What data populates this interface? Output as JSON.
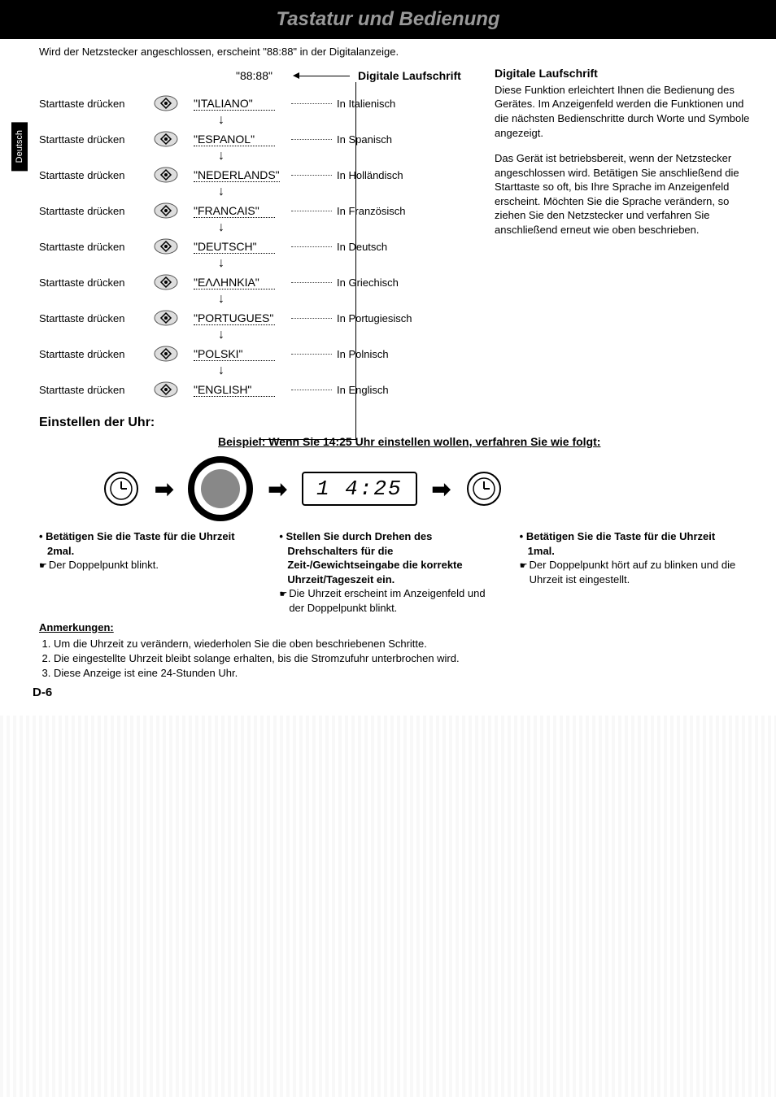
{
  "title": "Tastatur und Bedienung",
  "side_tab": "Deutsch",
  "intro": "Wird der Netzstecker angeschlossen, erscheint \"88:88\" in der Digitalanzeige.",
  "top_display": "\"88:88\"",
  "top_header": "Digitale Laufschrift",
  "press_label": "Starttaste drücken",
  "languages": [
    {
      "display": "\"ITALIANO\"",
      "desc": "In Italienisch"
    },
    {
      "display": "\"ESPANOL\"",
      "desc": "In Spanisch"
    },
    {
      "display": "\"NEDERLANDS\"",
      "desc": "In Holländisch"
    },
    {
      "display": "\"FRANCAIS\"",
      "desc": "In Französisch"
    },
    {
      "display": "\"DEUTSCH\"",
      "desc": "In Deutsch"
    },
    {
      "display": "\"ΕΛΛΗΝΚΙΑ\"",
      "desc": "In Griechisch"
    },
    {
      "display": "\"PORTUGUES\"",
      "desc": "In Portugiesisch"
    },
    {
      "display": "\"POLSKI\"",
      "desc": "In Polnisch"
    },
    {
      "display": "\"ENGLISH\"",
      "desc": "In Englisch"
    }
  ],
  "right": {
    "h1": "Digitale Laufschrift",
    "p1": "Diese Funktion erleichtert Ihnen die Bedienung des Gerätes. Im Anzeigenfeld werden die Funktionen und die nächsten Bedienschritte durch Worte und Symbole angezeigt.",
    "p2": "Das Gerät ist betriebsbereit, wenn der Netzstecker angeschlossen wird. Betätigen Sie anschließend die Starttaste so oft, bis Ihre Sprache im Anzeigenfeld erscheint. Möchten Sie die Sprache verändern, so ziehen Sie den Netzstecker und verfahren Sie anschließend erneut wie oben beschrieben."
  },
  "clock": {
    "heading": "Einstellen der Uhr:",
    "example": "Beispiel: Wenn Sie 14:25 Uhr einstellen wollen, verfahren Sie wie folgt:",
    "time_value": "1 4:25",
    "step1_h": "Betätigen Sie die Taste für die Uhrzeit 2mal.",
    "step1_s": "Der Doppelpunkt blinkt.",
    "step2_h": "Stellen Sie durch Drehen des Drehschalters für die Zeit-/Gewichtseingabe die korrekte Uhrzeit/Tageszeit ein.",
    "step2_s": "Die Uhrzeit erscheint im Anzeigenfeld und der Doppelpunkt blinkt.",
    "step3_h": "Betätigen Sie die Taste für die Uhrzeit 1mal.",
    "step3_s": "Der Doppelpunkt hört auf zu blinken und die Uhrzeit ist eingestellt."
  },
  "notes": {
    "heading": "Anmerkungen:",
    "n1": "Um die Uhrzeit zu verändern, wiederholen Sie die oben beschriebenen Schritte.",
    "n2": "Die eingestellte Uhrzeit bleibt solange erhalten, bis die Stromzufuhr unterbrochen wird.",
    "n3": "Diese Anzeige ist eine 24-Stunden Uhr."
  },
  "page_num": "D-6",
  "colors": {
    "title_bg": "#000000",
    "title_fg": "#999999",
    "text": "#000000",
    "page_bg": "#ffffff"
  }
}
